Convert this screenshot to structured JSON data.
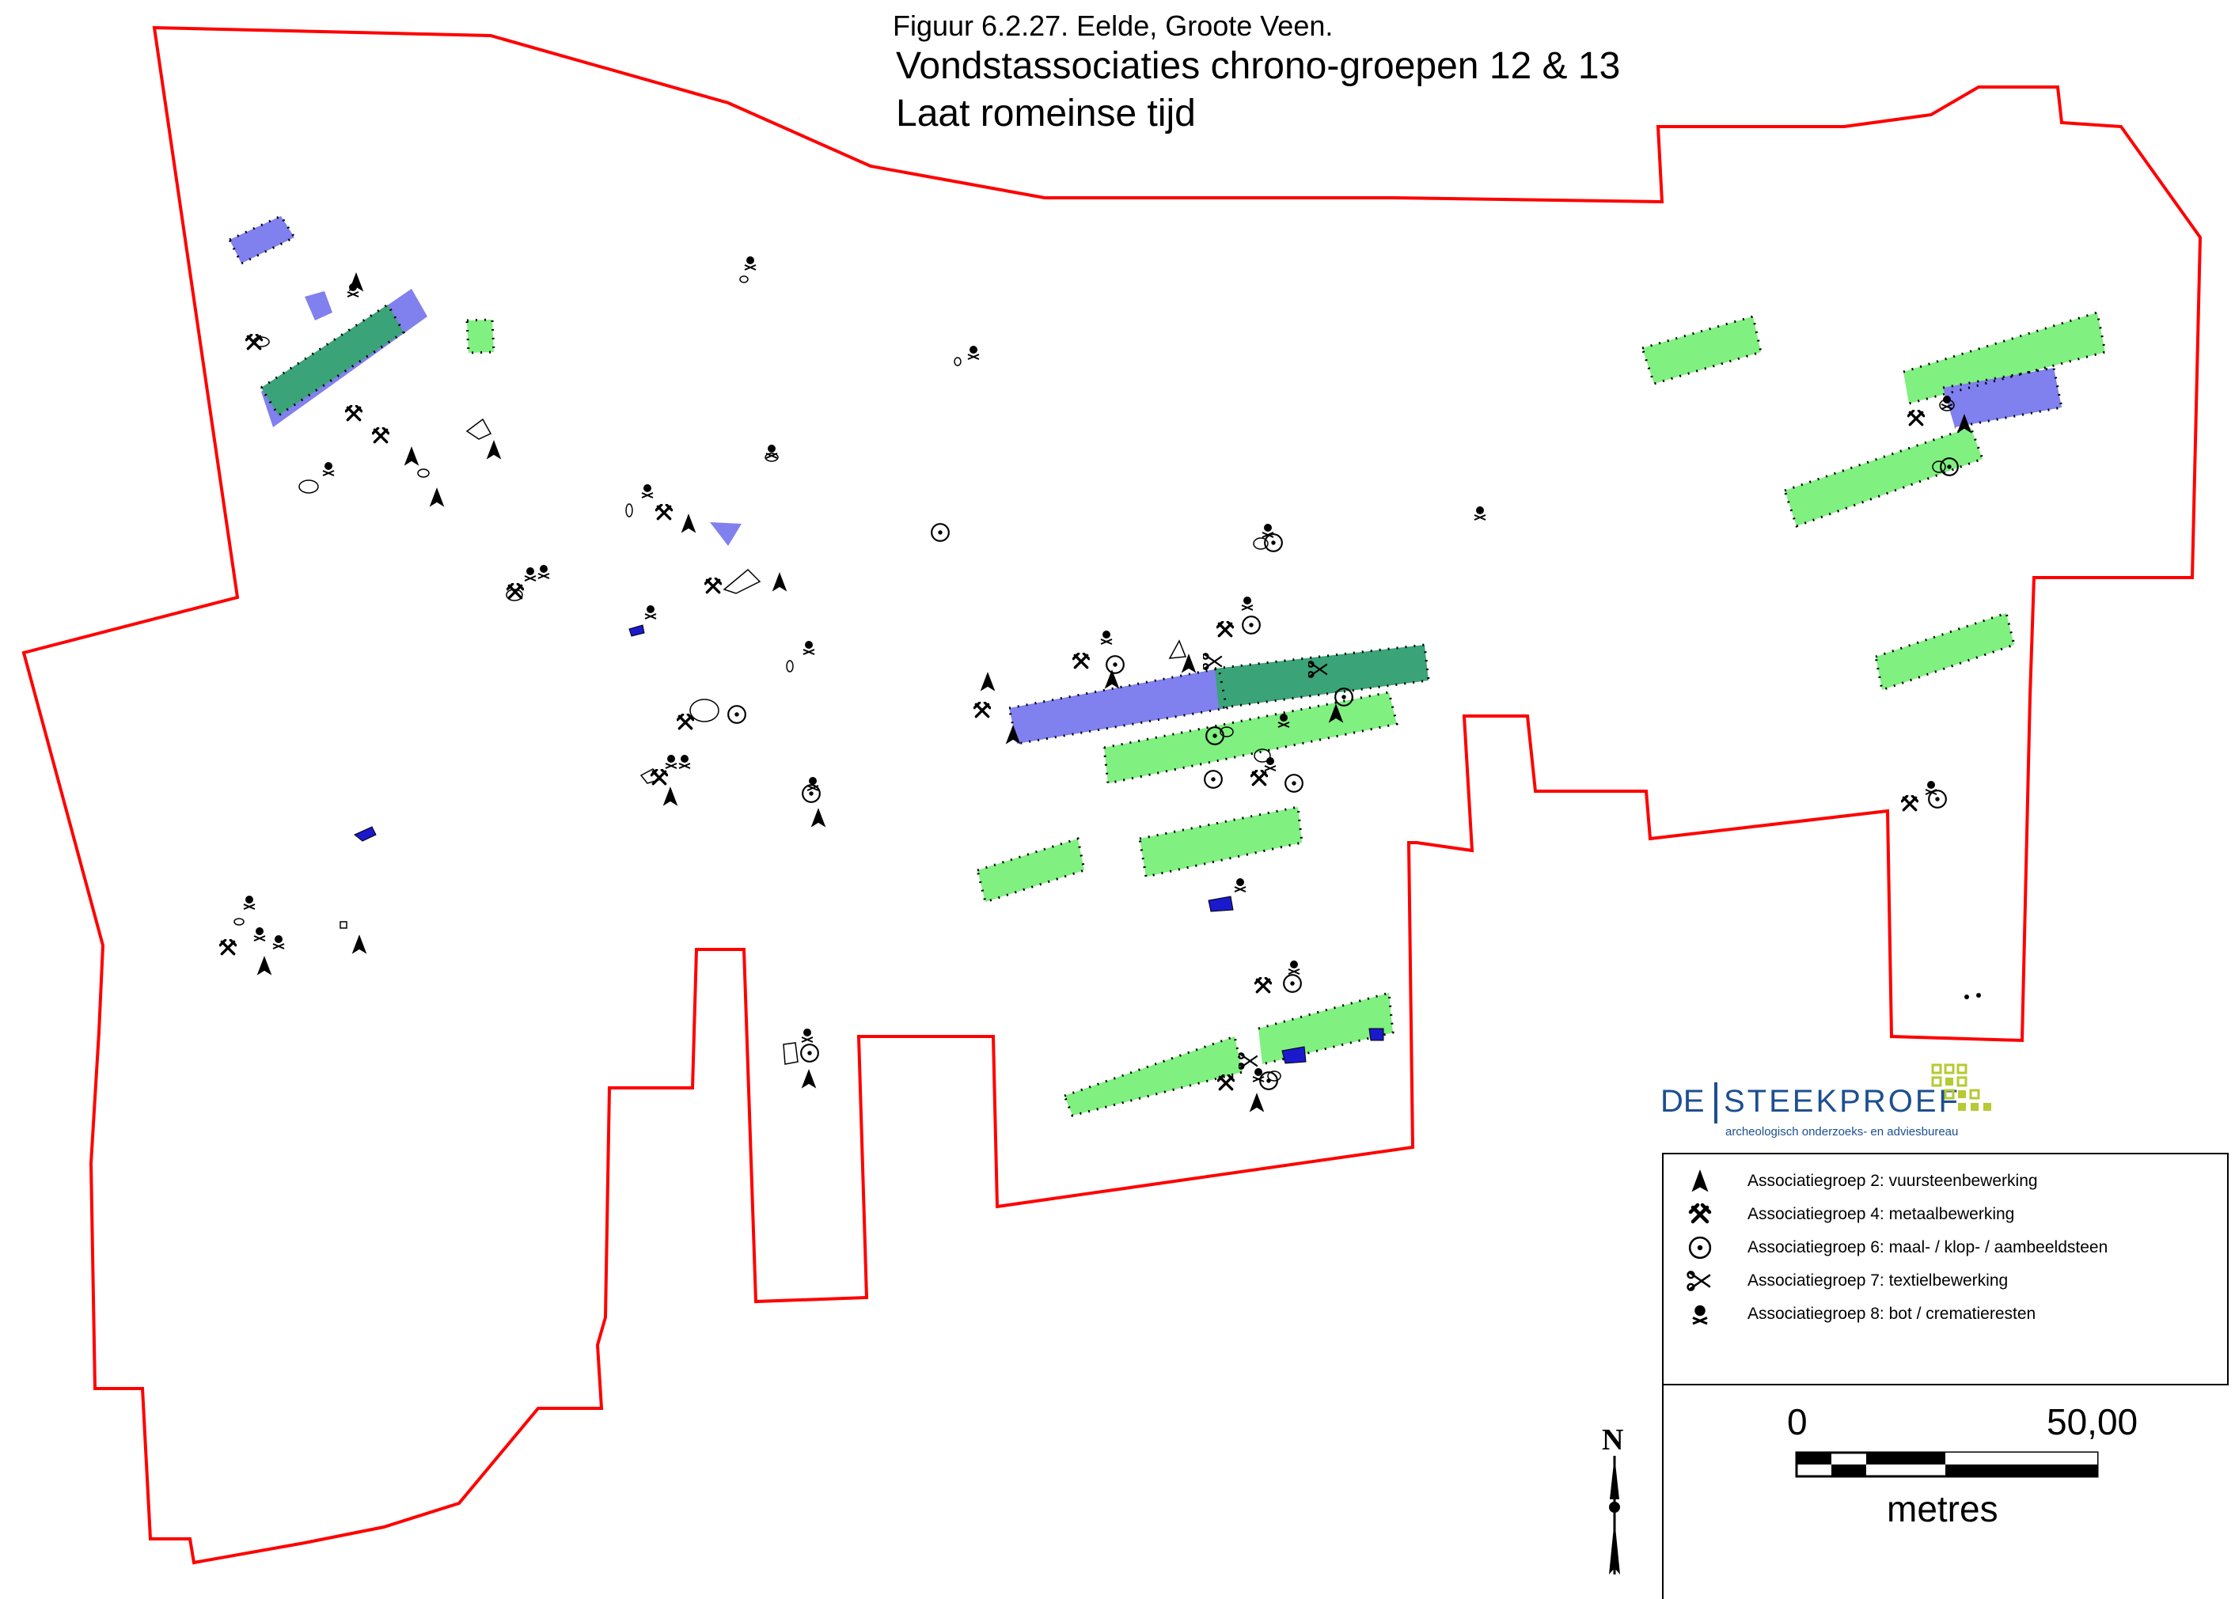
{
  "figure": {
    "caption": "Figuur 6.2.27. Eelde, Groote Veen.",
    "title_line1": "Vondstassociaties chrono-groepen 12 & 13",
    "title_line2": "Laat romeinse tijd"
  },
  "logo": {
    "prefix": "DE",
    "name": "STEEKPROEF",
    "tagline": "archeologisch onderzoeks- en adviesbureau",
    "color": "#1d4f91",
    "accent": "#b7c933"
  },
  "legend": {
    "items": [
      {
        "icon": "arrowhead-icon",
        "label": "Associatiegroep 2: vuursteenbewerking"
      },
      {
        "icon": "hammer-icon",
        "label": "Associatiegroep 4: metaalbewerking"
      },
      {
        "icon": "circle-dot-icon",
        "label": "Associatiegroep 6: maal- / klop- / aambeeldsteen"
      },
      {
        "icon": "scissors-icon",
        "label": "Associatiegroep 7: textielbewerking"
      },
      {
        "icon": "skull-icon",
        "label": "Associatiegroep 8: bot / crematieresten"
      }
    ]
  },
  "scale_bar": {
    "start_label": "0",
    "end_label": "50,00",
    "unit": "metres"
  },
  "north_arrow": {
    "label": "N"
  },
  "colors": {
    "boundary": "#ff0000",
    "house_light_green": "#80f080",
    "house_blue": "#8080ee",
    "house_overlap": "#3aa378",
    "dark_blue_feature": "#1a1acc"
  }
}
